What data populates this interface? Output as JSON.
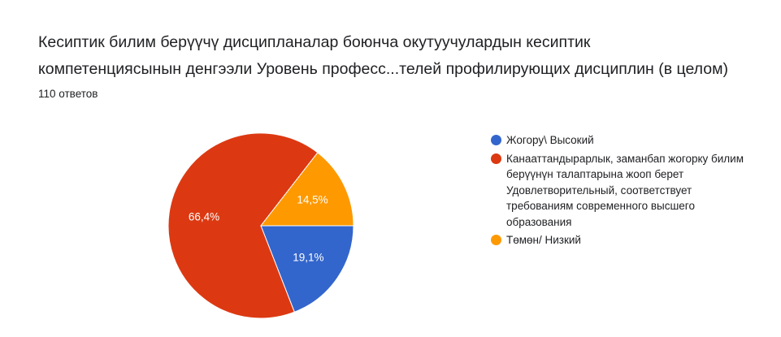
{
  "header": {
    "title": "  Кесиптик билим берүүчү дисципланалар боюнча окутуучулардын кесиптик\nкомпетенциясынын денгээли  Уровень професс...телей профилирующих дисциплин (в целом)",
    "responses": "110 ответов"
  },
  "chart_data": {
    "type": "pie",
    "title": "  Кесиптик билим берүүчү дисципланалар боюнча окутуучулардын кесиптик компетенциясынын денгээли  Уровень професс...телей профилирующих дисциплин (в целом)",
    "categories": [
      "Жогору\\ Высокий",
      "Канааттандырарлык, заманбап жогорку билим берүүнүн талаптарына жооп берет Удовлетворительный, соответствует требованиям современного высшего образования",
      "Төмөн/ Низкий"
    ],
    "values": [
      19.1,
      66.4,
      14.5
    ],
    "value_labels": [
      "19,1%",
      "66,4%",
      "14,5%"
    ],
    "colors": [
      "#3366cc",
      "#dc3912",
      "#ff9900"
    ],
    "legend_position": "right"
  },
  "legend": {
    "items": [
      {
        "label": "Жогору\\ Высокий",
        "color": "#3366cc"
      },
      {
        "label": "Канааттандырарлык, заманбап жогорку билим берүүнүн талаптарына жооп берет Удовлетворительный, соответствует требованиям современного высшего образования",
        "color": "#dc3912"
      },
      {
        "label": "Төмөн/ Низкий",
        "color": "#ff9900"
      }
    ]
  }
}
